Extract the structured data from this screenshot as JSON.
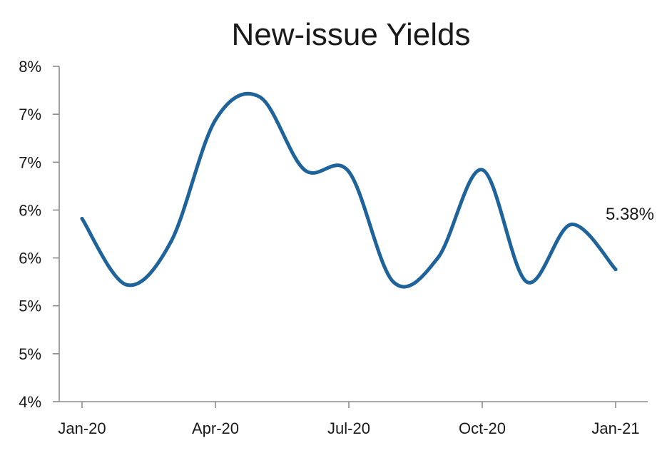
{
  "chart_data": {
    "type": "line",
    "title": "New-issue Yields",
    "xlabel": "",
    "ylabel": "",
    "y_tick_labels": [
      "4%",
      "5%",
      "5%",
      "6%",
      "6%",
      "7%",
      "7%",
      "8%"
    ],
    "y_ticks": [
      4.0,
      4.5,
      5.0,
      5.5,
      6.0,
      6.5,
      7.0,
      7.5
    ],
    "ylim": [
      4.0,
      7.5
    ],
    "x_tick_labels": [
      "Jan-20",
      "Apr-20",
      "Jul-20",
      "Oct-20",
      "Jan-21"
    ],
    "x_ticks": [
      "2020-01",
      "2020-04",
      "2020-07",
      "2020-10",
      "2021-01"
    ],
    "grid": false,
    "legend": "none",
    "series": [
      {
        "color": "#1f639b",
        "x": [
          "2020-01",
          "2020-02",
          "2020-03",
          "2020-04",
          "2020-05",
          "2020-06",
          "2020-07",
          "2020-08",
          "2020-09",
          "2020-10",
          "2020-11",
          "2020-12",
          "2021-01"
        ],
        "values": [
          5.91,
          5.22,
          5.67,
          6.94,
          7.18,
          6.42,
          6.4,
          5.25,
          5.5,
          6.42,
          5.25,
          5.85,
          5.38
        ],
        "end_label": "5.38%"
      }
    ]
  }
}
